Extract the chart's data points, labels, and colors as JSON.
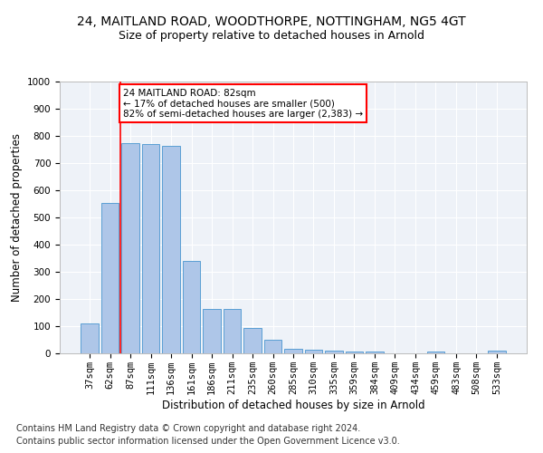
{
  "title1": "24, MAITLAND ROAD, WOODTHORPE, NOTTINGHAM, NG5 4GT",
  "title2": "Size of property relative to detached houses in Arnold",
  "xlabel": "Distribution of detached houses by size in Arnold",
  "ylabel": "Number of detached properties",
  "categories": [
    "37sqm",
    "62sqm",
    "87sqm",
    "111sqm",
    "136sqm",
    "161sqm",
    "186sqm",
    "211sqm",
    "235sqm",
    "260sqm",
    "285sqm",
    "310sqm",
    "335sqm",
    "359sqm",
    "384sqm",
    "409sqm",
    "434sqm",
    "459sqm",
    "483sqm",
    "508sqm",
    "533sqm"
  ],
  "values": [
    110,
    555,
    775,
    770,
    765,
    340,
    162,
    162,
    95,
    50,
    18,
    13,
    10,
    8,
    7,
    0,
    0,
    7,
    0,
    0,
    10
  ],
  "bar_color": "#aec6e8",
  "bar_edge_color": "#5a9fd4",
  "property_line_x": 1.5,
  "annotation_text": "24 MAITLAND ROAD: 82sqm\n← 17% of detached houses are smaller (500)\n82% of semi-detached houses are larger (2,383) →",
  "annotation_box_color": "white",
  "annotation_box_edge": "red",
  "property_line_color": "red",
  "ylim": [
    0,
    1000
  ],
  "yticks": [
    0,
    100,
    200,
    300,
    400,
    500,
    600,
    700,
    800,
    900,
    1000
  ],
  "footer1": "Contains HM Land Registry data © Crown copyright and database right 2024.",
  "footer2": "Contains public sector information licensed under the Open Government Licence v3.0.",
  "background_color": "#eef2f8",
  "grid_color": "#ffffff",
  "title1_fontsize": 10,
  "title2_fontsize": 9,
  "xlabel_fontsize": 8.5,
  "ylabel_fontsize": 8.5,
  "tick_fontsize": 7.5,
  "footer_fontsize": 7,
  "annot_fontsize": 7.5
}
